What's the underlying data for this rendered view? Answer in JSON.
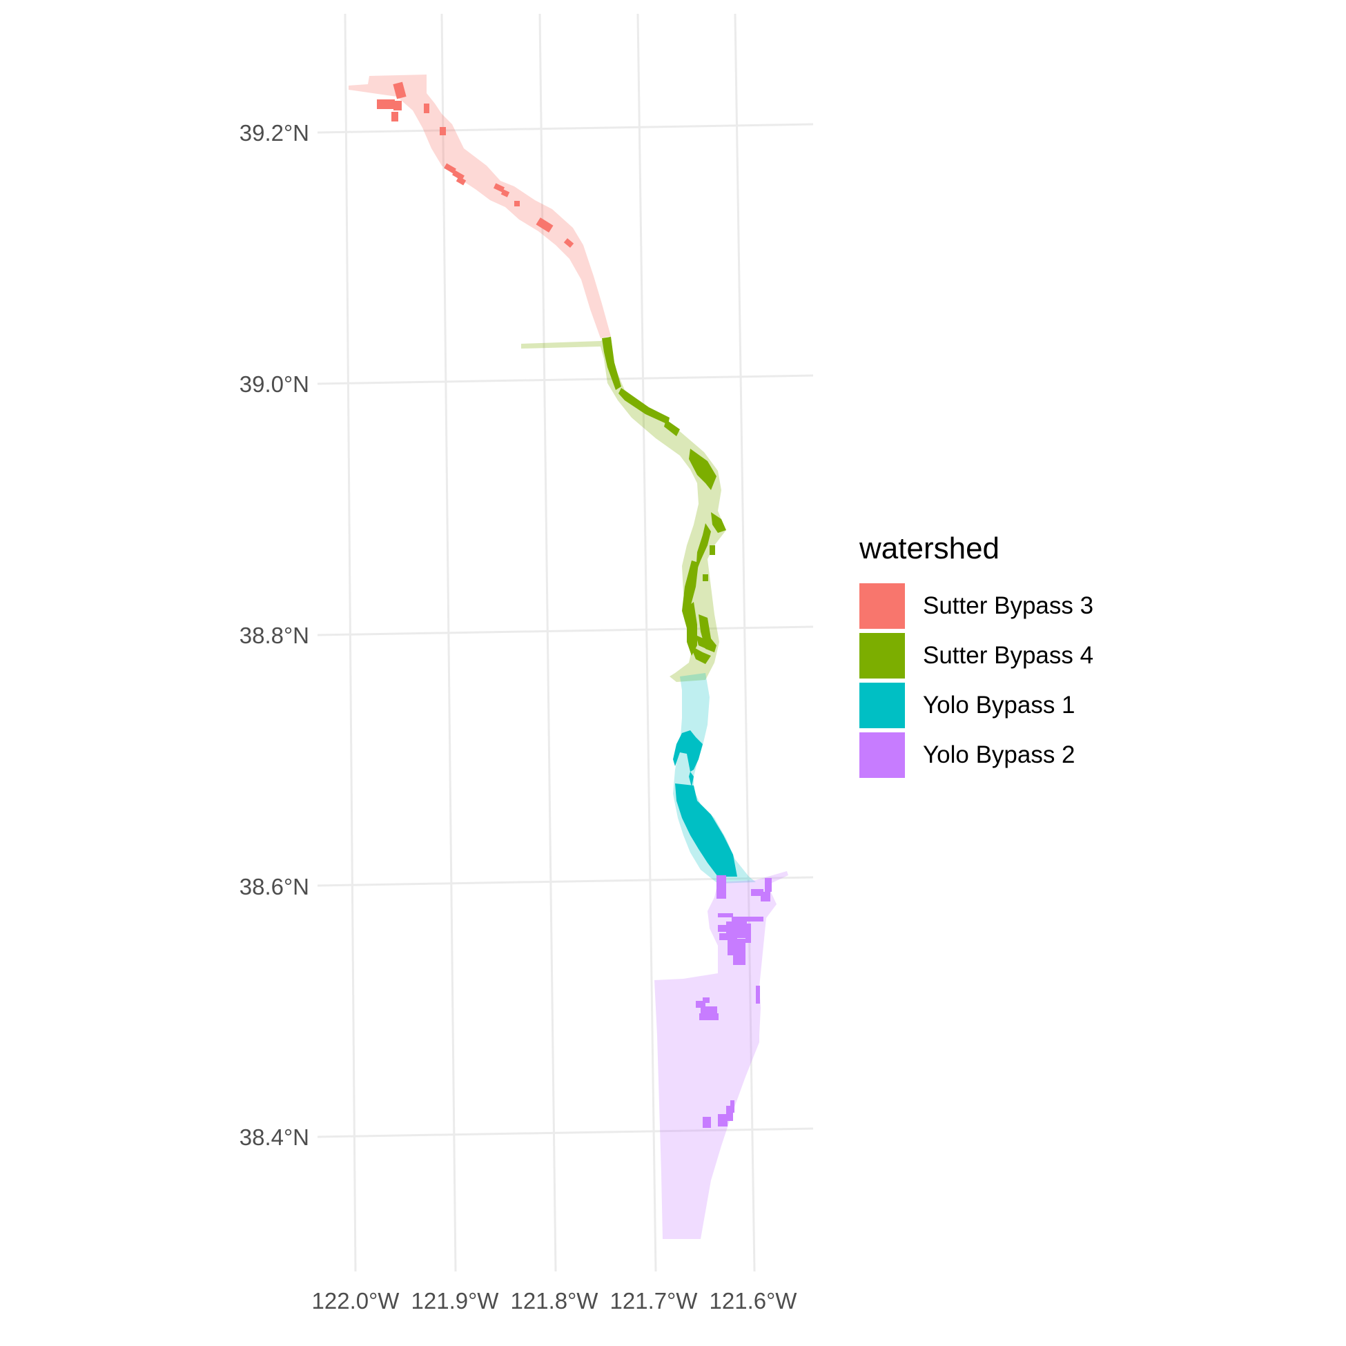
{
  "map": {
    "x_ticks": [
      "122.0°W",
      "121.9°W",
      "121.8°W",
      "121.7°W",
      "121.6°W"
    ],
    "y_ticks": [
      "39.2°N",
      "39.0°N",
      "38.8°N",
      "38.6°N",
      "38.4°N"
    ],
    "grid": true,
    "legend_placement": "right"
  },
  "legend": {
    "title": "watershed",
    "items": [
      {
        "label": "Sutter Bypass 3",
        "color": "#F8766D"
      },
      {
        "label": "Sutter Bypass 4",
        "color": "#7CAE00"
      },
      {
        "label": "Yolo Bypass 1",
        "color": "#00BFC4"
      },
      {
        "label": "Yolo Bypass 2",
        "color": "#C77CFF"
      }
    ]
  }
}
